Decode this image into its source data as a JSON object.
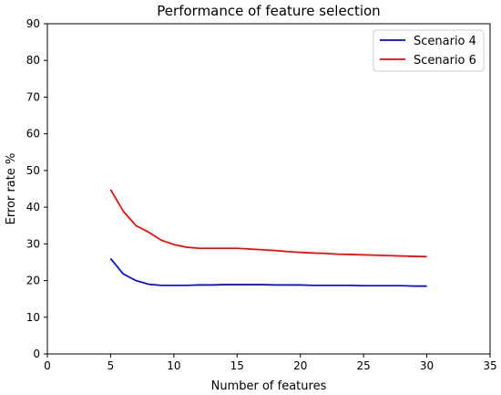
{
  "chart_data": {
    "type": "line",
    "title": "Performance of feature selection",
    "xlabel": "Number of features",
    "ylabel": "Error rate %",
    "xlim": [
      0,
      35
    ],
    "ylim": [
      0,
      90
    ],
    "xticks": [
      0,
      5,
      10,
      15,
      20,
      25,
      30,
      35
    ],
    "yticks": [
      0,
      10,
      20,
      30,
      40,
      50,
      60,
      70,
      80,
      90
    ],
    "grid": false,
    "legend_position": "top-right",
    "series": [
      {
        "name": "Scenario 4",
        "color": "#0000ff",
        "x": [
          5,
          6,
          7,
          8,
          9,
          10,
          11,
          12,
          13,
          14,
          15,
          16,
          17,
          18,
          19,
          20,
          21,
          22,
          23,
          24,
          25,
          26,
          27,
          28,
          29,
          30
        ],
        "y": [
          26.0,
          21.8,
          20.0,
          19.0,
          18.7,
          18.7,
          18.7,
          18.8,
          18.8,
          18.9,
          18.9,
          18.9,
          18.9,
          18.8,
          18.8,
          18.8,
          18.7,
          18.7,
          18.7,
          18.7,
          18.6,
          18.6,
          18.6,
          18.6,
          18.5,
          18.5
        ]
      },
      {
        "name": "Scenario 6",
        "color": "#ff0000",
        "x": [
          5,
          6,
          7,
          8,
          9,
          10,
          11,
          12,
          13,
          14,
          15,
          16,
          17,
          18,
          19,
          20,
          21,
          22,
          23,
          24,
          25,
          26,
          27,
          28,
          29,
          30
        ],
        "y": [
          44.8,
          38.9,
          35.0,
          33.2,
          31.0,
          29.8,
          29.1,
          28.8,
          28.8,
          28.8,
          28.8,
          28.6,
          28.4,
          28.2,
          27.9,
          27.7,
          27.5,
          27.4,
          27.2,
          27.1,
          27.0,
          26.9,
          26.8,
          26.7,
          26.6,
          26.5
        ]
      }
    ]
  }
}
